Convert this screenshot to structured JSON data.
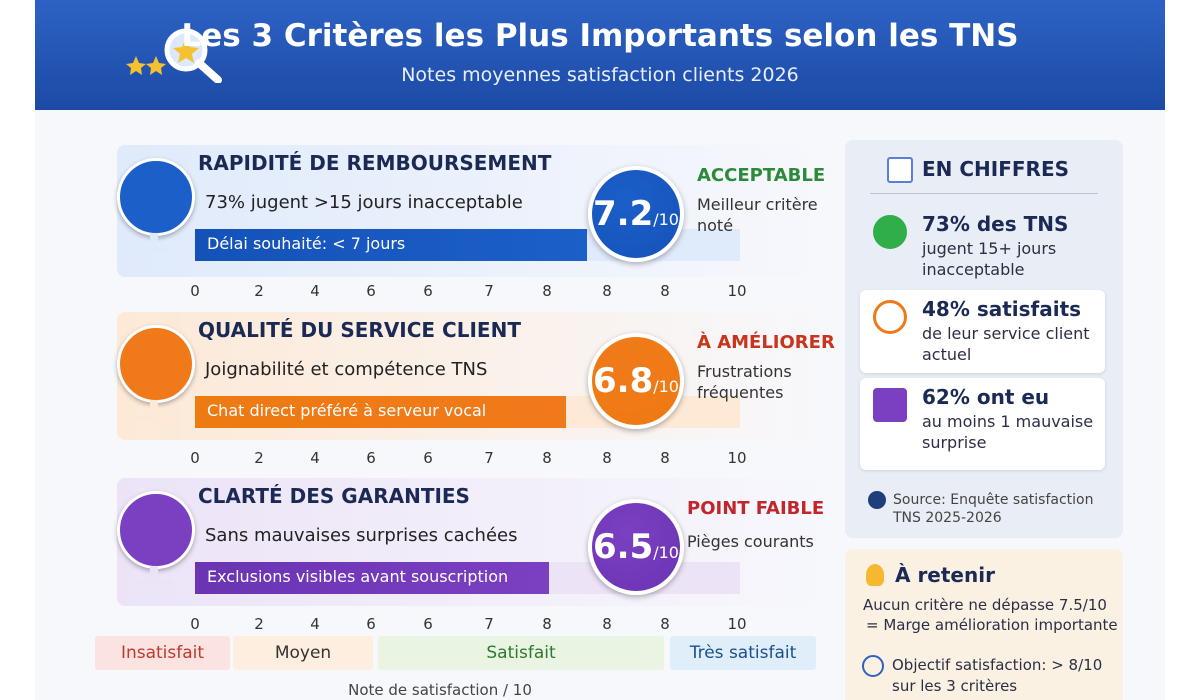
{
  "header": {
    "title": "Les 3 Critères les Plus Importants selon les TNS",
    "subtitle": "Notes moyennes satisfaction clients 2026"
  },
  "criteria": [
    {
      "title": "RAPIDITÉ DE REMBOURSEMENT",
      "subtext": "73% jugent >15 jours inacceptable",
      "bar_label": "Délai souhaité: < 7 jours",
      "score": 7.2,
      "score_unit": "/10",
      "status": "ACCEPTABLE",
      "note": "Meilleur critère noté"
    },
    {
      "title": "QUALITÉ DU SERVICE CLIENT",
      "subtext": "Joignabilité et compétence TNS",
      "bar_label": "Chat direct préféré à serveur vocal",
      "score": 6.8,
      "score_unit": "/10",
      "status": "À AMÉLIORER",
      "note": "Frustrations fréquentes"
    },
    {
      "title": "CLARTÉ DES GARANTIES",
      "subtext": "Sans mauvaises surprises cachées",
      "bar_label": "Exclusions visibles avant souscription",
      "score": 6.5,
      "score_unit": "/10",
      "status": "POINT FAIBLE",
      "note": "Pièges courants"
    }
  ],
  "axis_ticks": [
    "0",
    "2",
    "4",
    "6",
    "6",
    "7",
    "8",
    "8",
    "8",
    "10"
  ],
  "legend": [
    "Insatisfait",
    "Moyen",
    "Satisfait",
    "Très satisfait"
  ],
  "axis_title": "Note de satisfaction / 10",
  "sidebar": {
    "title": "EN CHIFFRES",
    "items": [
      {
        "headline": "73% des TNS",
        "text": "jugent 15+ jours inacceptable"
      },
      {
        "headline": "48% satisfaits",
        "text": "de leur service client actuel"
      },
      {
        "headline": "62% ont eu",
        "text": "au moins 1 mauvaise surprise"
      }
    ],
    "source": "Source: Enquête satisfaction TNS 2025-2026"
  },
  "takeaway": {
    "title": "À retenir",
    "lines": [
      "Aucun critère ne dépasse 7.5/10",
      "= Marge amélioration importante"
    ],
    "goal": "Objectif satisfaction: > 8/10 sur les 3 critères"
  }
}
